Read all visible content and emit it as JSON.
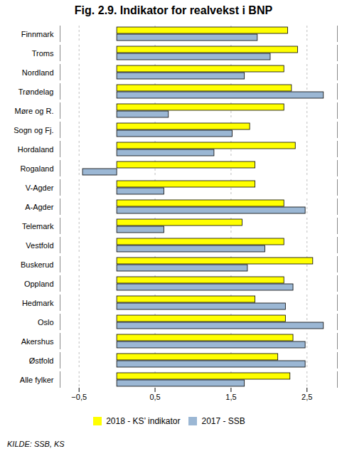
{
  "chart_data": {
    "type": "bar",
    "orientation": "horizontal",
    "title": "Fig. 2.9. Indikator for realvekst i BNP",
    "categories": [
      "Finnmark",
      "Troms",
      "Nordland",
      "Trøndelag",
      "Møre og R.",
      "Sogn og Fj.",
      "Hordaland",
      "Rogaland",
      "V-Agder",
      "A-Agder",
      "Telemark",
      "Vestfold",
      "Buskerud",
      "Oppland",
      "Hedmark",
      "Oslo",
      "Akershus",
      "Østfold",
      "Alle fylker"
    ],
    "series": [
      {
        "name": "2018 - KS’ indikator",
        "color": "#FFFF00",
        "values": [
          2.25,
          2.38,
          2.2,
          2.3,
          2.2,
          1.75,
          2.35,
          1.82,
          1.82,
          2.2,
          1.65,
          2.2,
          2.58,
          2.2,
          1.82,
          2.22,
          2.32,
          2.12,
          2.28
        ]
      },
      {
        "name": "2017 - SSB",
        "color": "#9BB7D4",
        "values": [
          1.85,
          2.02,
          1.68,
          2.72,
          0.68,
          1.52,
          1.28,
          -0.45,
          0.62,
          2.48,
          0.62,
          1.95,
          1.72,
          2.32,
          2.22,
          2.72,
          2.48,
          2.48,
          1.68
        ]
      }
    ],
    "xlim": [
      -0.75,
      2.9
    ],
    "xticks": [
      {
        "value": -0.5,
        "label": "−0,5"
      },
      {
        "value": 0.5,
        "label": "0,5"
      },
      {
        "value": 1.5,
        "label": "1,5"
      },
      {
        "value": 2.5,
        "label": "2,5"
      }
    ],
    "grid": true,
    "legend": "bottom",
    "annotations": [
      "KILDE: SSB, KS"
    ]
  }
}
